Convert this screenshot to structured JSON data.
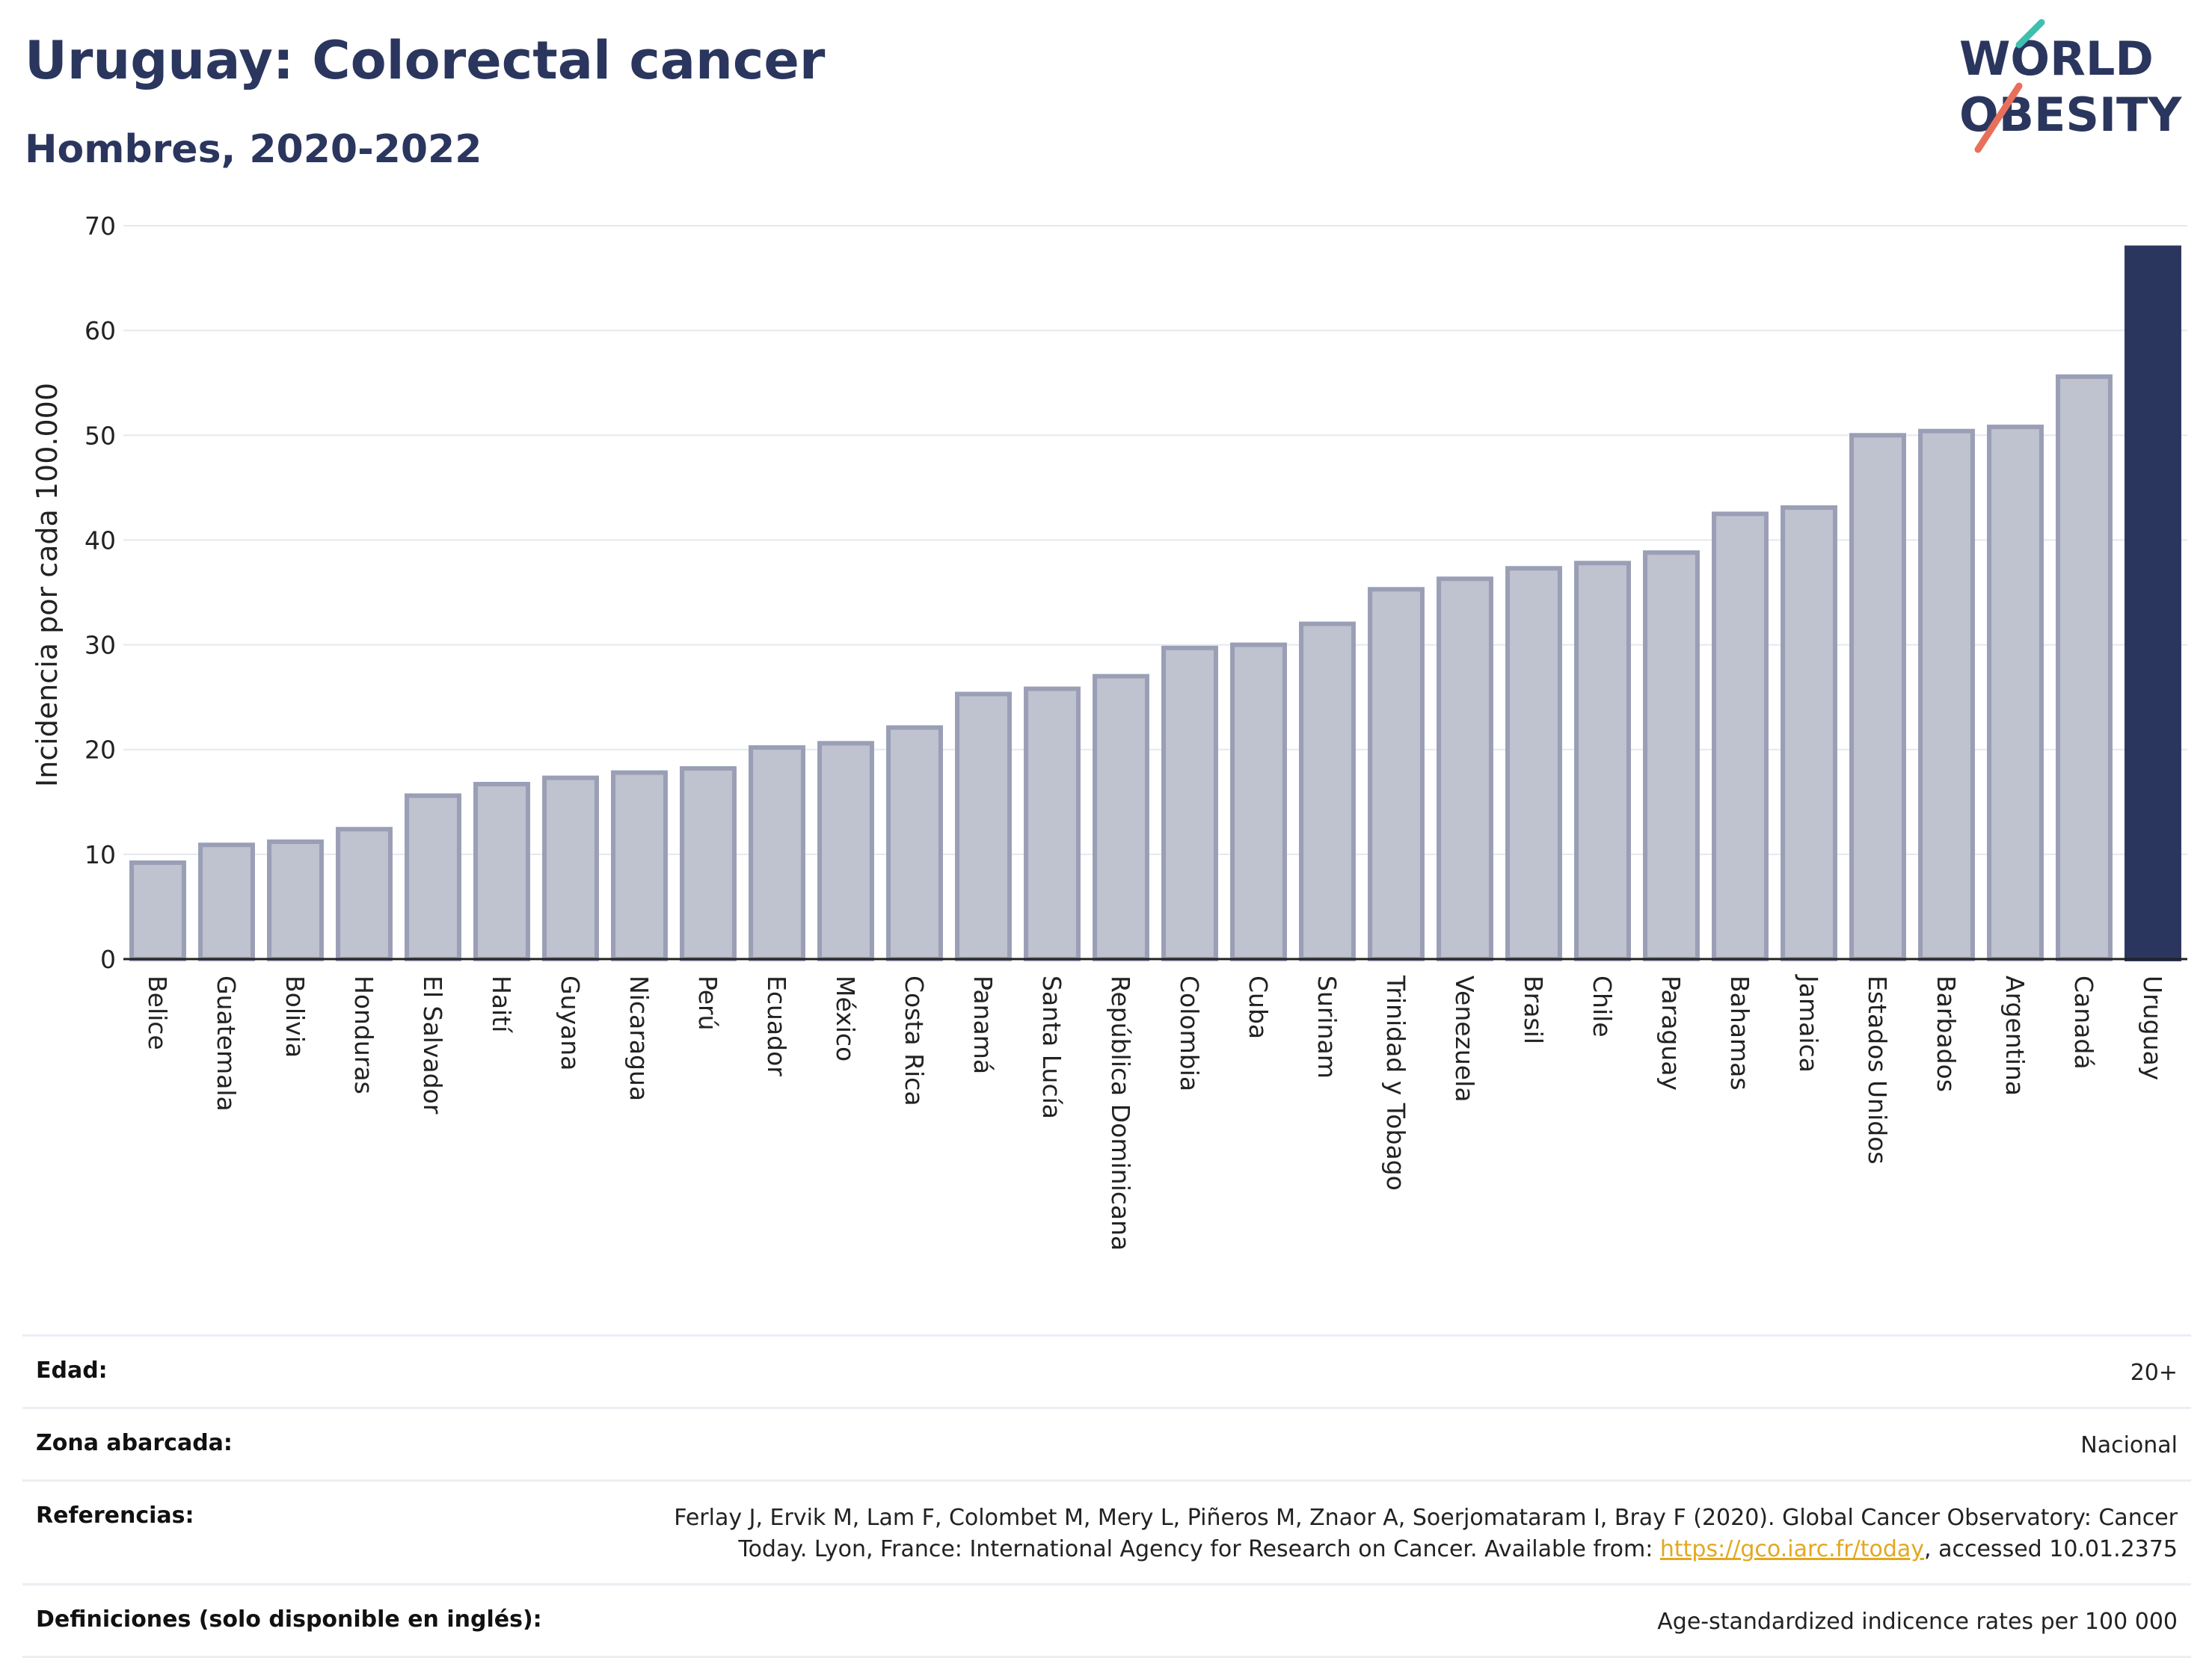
{
  "title": "Uruguay: Colorectal cancer",
  "subtitle": "Hombres, 2020-2022",
  "logo": {
    "line1": "WORLD",
    "line2": "OBESITY",
    "colors": {
      "text": "#2b365e",
      "accent_teal": "#3fbfb0",
      "accent_red": "#e8705a"
    }
  },
  "chart_data": {
    "type": "bar",
    "ylabel": "Incidencia por cada 100.000",
    "xlabel": "",
    "ylim": [
      0,
      70
    ],
    "yticks": [
      0,
      10,
      20,
      30,
      40,
      50,
      60,
      70
    ],
    "grid": true,
    "categories": [
      "Belice",
      "Guatemala",
      "Bolivia",
      "Honduras",
      "El Salvador",
      "Haití",
      "Guyana",
      "Nicaragua",
      "Perú",
      "Ecuador",
      "México",
      "Costa Rica",
      "Panamá",
      "Santa Lucía",
      "República Dominicana",
      "Colombia",
      "Cuba",
      "Surinam",
      "Trinidad y Tobago",
      "Venezuela",
      "Brasil",
      "Chile",
      "Paraguay",
      "Bahamas",
      "Jamaica",
      "Estados Unidos",
      "Barbados",
      "Argentina",
      "Canadá",
      "Uruguay"
    ],
    "values": [
      9.2,
      10.9,
      11.2,
      12.4,
      15.6,
      16.7,
      17.3,
      17.8,
      18.2,
      20.2,
      20.6,
      22.1,
      25.3,
      25.8,
      27.0,
      29.7,
      30.0,
      32.0,
      35.3,
      36.3,
      37.3,
      37.8,
      38.8,
      42.5,
      43.1,
      50.0,
      50.4,
      50.8,
      55.6,
      67.9
    ],
    "highlight": "Uruguay",
    "colors": {
      "bar": "#bfc2cf",
      "bar_border": "#9a9fb6",
      "highlight": "#2b365e",
      "grid": "#e6e8ee"
    }
  },
  "meta": {
    "age_label": "Edad:",
    "age_value": "20+",
    "zone_label": "Zona abarcada:",
    "zone_value": "Nacional",
    "ref_label": "Referencias:",
    "ref_text_1": "Ferlay J, Ervik M, Lam F, Colombet M, Mery L, Piñeros M, Znaor A, Soerjomataram I, Bray F (2020). Global Cancer Observatory: Cancer Today. Lyon, France: International Agency for Research on Cancer. Available from: ",
    "ref_link": "https://gco.iarc.fr/today",
    "ref_text_2": ", accessed 10.01.2375",
    "def_label": "Definiciones (solo disponible en inglés):",
    "def_value": "Age-standardized indicence rates per 100 000"
  }
}
